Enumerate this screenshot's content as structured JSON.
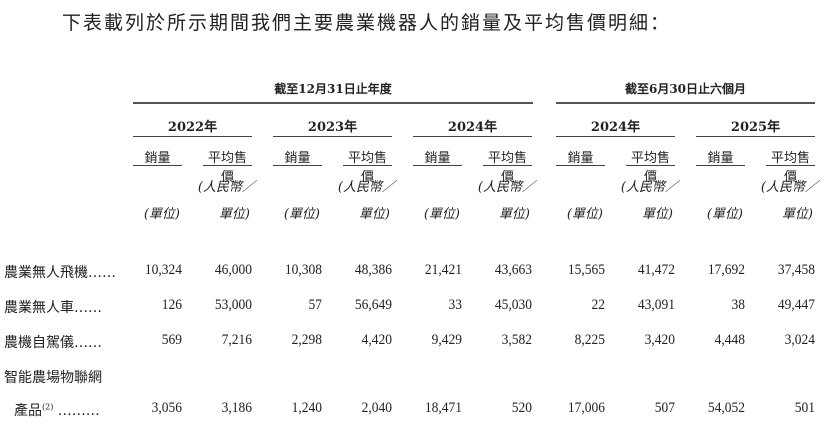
{
  "title": "下表載列於所示期間我們主要農業機器人的銷量及平均售價明細：",
  "groups": [
    "截至12月31日止年度",
    "截至6月30日止六個月"
  ],
  "years": [
    "2022年",
    "2023年",
    "2024年",
    "2024年",
    "2025年"
  ],
  "sub_headers": {
    "volume": "銷量",
    "price": "平均售價"
  },
  "units": {
    "volume": "(單位)",
    "price_line1": "(人民幣／",
    "price_line2": "單位)"
  },
  "rows": [
    {
      "label": "農業無人飛機……",
      "values": [
        "10,324",
        "46,000",
        "10,308",
        "48,386",
        "21,421",
        "43,663",
        "15,565",
        "41,472",
        "17,692",
        "37,458"
      ]
    },
    {
      "label": "農業無人車……",
      "values": [
        "126",
        "53,000",
        "57",
        "56,649",
        "33",
        "45,030",
        "22",
        "43,091",
        "38",
        "49,447"
      ]
    },
    {
      "label": "農機自駕儀……",
      "values": [
        "569",
        "7,216",
        "2,298",
        "4,420",
        "9,429",
        "3,582",
        "8,225",
        "3,420",
        "4,448",
        "3,024"
      ]
    },
    {
      "label": "智能農場物聯網",
      "values": []
    },
    {
      "label": "產品",
      "footnote": "(2)",
      "label_suffix": " ………",
      "values": [
        "3,056",
        "3,186",
        "1,240",
        "2,040",
        "18,471",
        "520",
        "17,006",
        "507",
        "54,052",
        "501"
      ]
    }
  ]
}
